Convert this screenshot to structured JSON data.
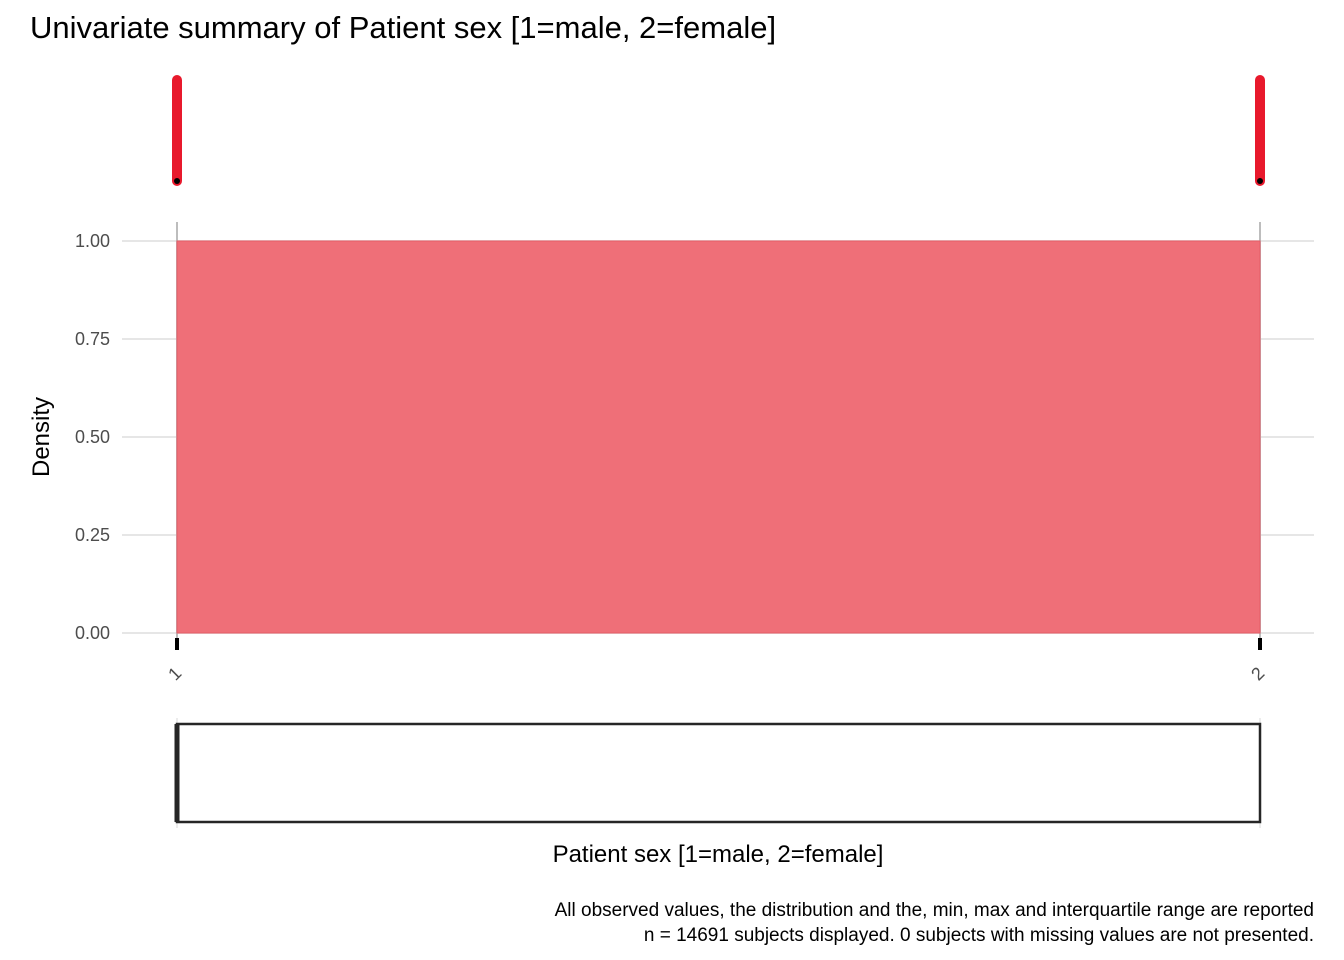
{
  "title": "Univariate summary of Patient sex [1=male, 2=female]",
  "colors": {
    "accent": "#e8192c",
    "fill": "#ef6f78",
    "grid": "#e6e6e6",
    "box_outline": "#262626"
  },
  "chart_data": [
    {
      "type": "rug",
      "x_values": [
        1,
        2
      ]
    },
    {
      "type": "area",
      "x": [
        1,
        2
      ],
      "y": [
        1.0,
        1.0
      ],
      "ylabel": "Density",
      "ylim": [
        0,
        1
      ],
      "yticks": [
        "0.00",
        "0.25",
        "0.50",
        "0.75",
        "1.00"
      ],
      "xlim": [
        1,
        2
      ],
      "xticks": [
        "1",
        "2"
      ],
      "grid": true
    },
    {
      "type": "boxplot",
      "min": 1,
      "q1": 1,
      "median": 1,
      "q3": 2,
      "max": 2,
      "xlabel": "Patient sex [1=male, 2=female]"
    }
  ],
  "caption": {
    "line1": "All observed values, the distribution and the, min, max and interquartile range are reported",
    "line2": "n = 14691 subjects displayed. 0 subjects with missing values are not presented."
  }
}
